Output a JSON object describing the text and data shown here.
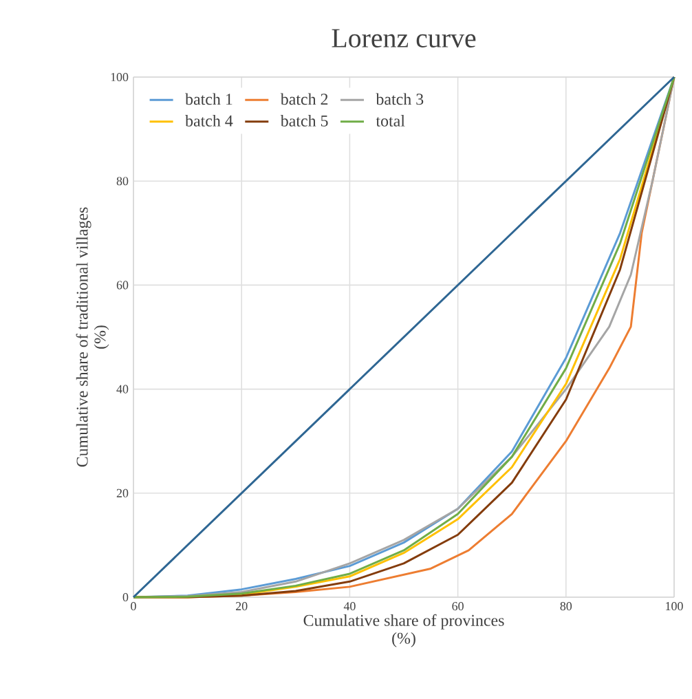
{
  "chart_data": {
    "type": "line",
    "title": "Lorenz curve",
    "xlabel": "Cumulative share of provinces\n(%)",
    "ylabel": "Cumulative share of traditional villages\n(%)",
    "xlim": [
      0,
      100
    ],
    "ylim": [
      0,
      100
    ],
    "xticks": [
      0,
      20,
      40,
      60,
      80,
      100
    ],
    "yticks": [
      0,
      20,
      40,
      60,
      80,
      100
    ],
    "grid": true,
    "legend": "top left",
    "marker": "none",
    "series": [
      {
        "name": "batch 1",
        "color": "#5b9bd5",
        "x": [
          0,
          10,
          20,
          30,
          40,
          50,
          60,
          70,
          80,
          90,
          100
        ],
        "values": [
          0,
          0.3,
          1.5,
          3.5,
          6,
          10.5,
          17,
          28,
          46,
          70,
          100
        ]
      },
      {
        "name": "batch 2",
        "color": "#ed7d31",
        "x": [
          0,
          10,
          20,
          30,
          40,
          55,
          62,
          70,
          80,
          88,
          92,
          94,
          100
        ],
        "values": [
          0,
          0,
          0.3,
          1,
          2,
          5.5,
          9,
          16,
          30,
          44,
          52,
          70,
          100
        ]
      },
      {
        "name": "batch 3",
        "color": "#a5a5a5",
        "x": [
          0,
          10,
          20,
          30,
          40,
          50,
          60,
          70,
          80,
          88,
          92,
          96,
          100
        ],
        "values": [
          0,
          0.2,
          1,
          3,
          6.5,
          11,
          17,
          27,
          40,
          52,
          62,
          80,
          100
        ]
      },
      {
        "name": "batch 4",
        "color": "#ffc000",
        "x": [
          0,
          10,
          20,
          30,
          40,
          50,
          60,
          70,
          80,
          90,
          100
        ],
        "values": [
          0,
          0,
          0.5,
          2,
          4,
          8.5,
          15,
          25,
          41,
          65,
          100
        ]
      },
      {
        "name": "batch 5",
        "color": "#843c0c",
        "x": [
          0,
          10,
          20,
          30,
          40,
          50,
          60,
          70,
          80,
          90,
          100
        ],
        "values": [
          0,
          0,
          0.3,
          1.2,
          3,
          6.5,
          12,
          22,
          38,
          63,
          100
        ]
      },
      {
        "name": "total",
        "color": "#70ad47",
        "x": [
          0,
          10,
          20,
          30,
          40,
          50,
          60,
          70,
          80,
          90,
          100
        ],
        "values": [
          0,
          0.1,
          0.7,
          2.2,
          4.5,
          9,
          16,
          27,
          44,
          68,
          100
        ]
      },
      {
        "color": "#2e6693",
        "x": [
          0,
          100
        ],
        "values": [
          0,
          100
        ]
      }
    ]
  }
}
